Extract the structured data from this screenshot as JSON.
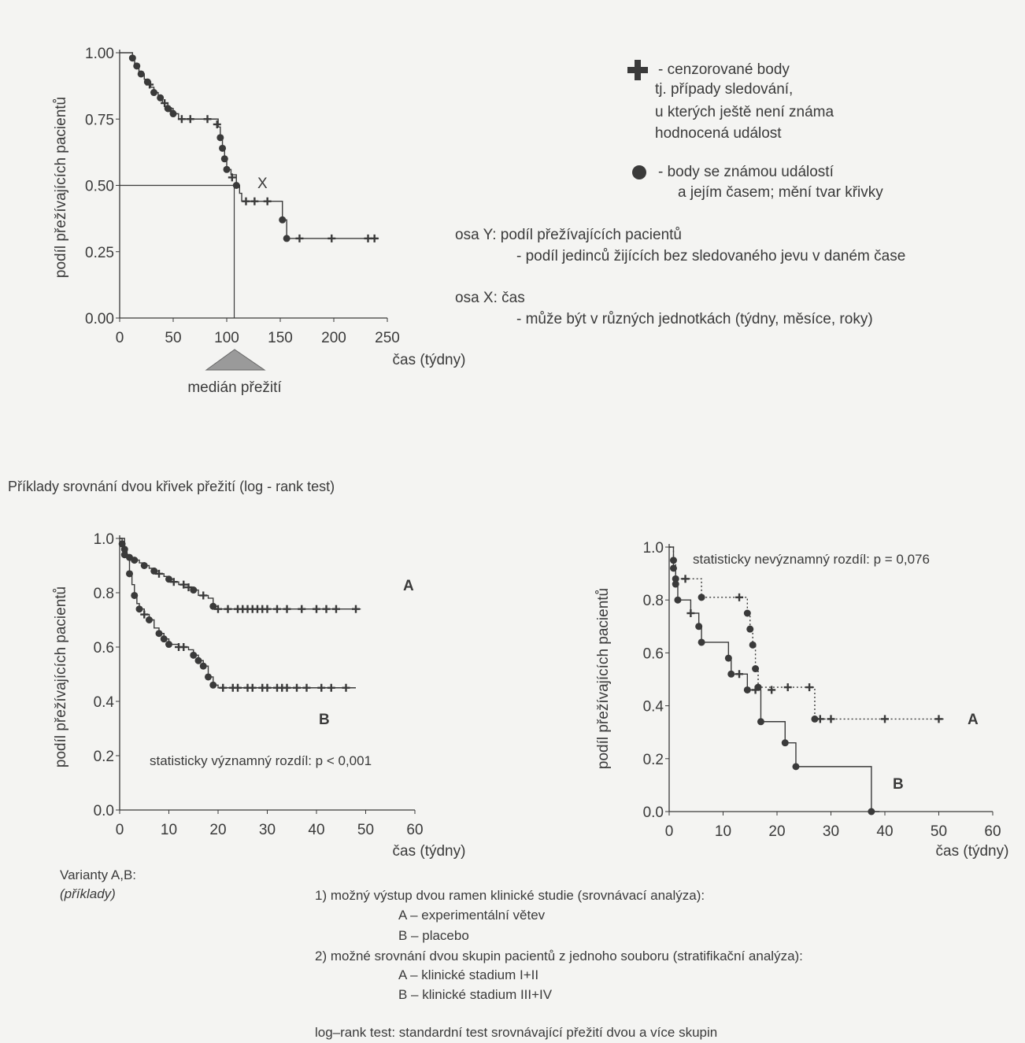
{
  "legend": {
    "censored_label": "- cenzorované body",
    "censored_desc": [
      "tj. případy sledování,",
      "u kterých ještě není známa",
      "hodnocená událost"
    ],
    "event_label": "- body se známou událostí",
    "event_desc": "a jejím časem; mění tvar křivky",
    "osa_y_title": "osa Y: podíl přežívajících pacientů",
    "osa_y_desc": "- podíl jedinců žijících bez sledovaného jevu v daném čase",
    "osa_x_title": "osa X: čas",
    "osa_x_desc": "- může být v různých jednotkách (týdny, měsíce, roky)"
  },
  "section_title": "Příklady srovnání dvou křivek přežití (log - rank test)",
  "varianty": {
    "title": "Varianty A,B:",
    "sub": "(příklady)"
  },
  "notes": {
    "n1": "1) možný výstup dvou ramen klinické studie (srovnávací analýza):",
    "n1a": "A – experimentální větev",
    "n1b": "B – placebo",
    "n2": "2) možné srovnání dvou skupin pacientů z jednoho souboru (stratifikační analýza):",
    "n2a": "A – klinické stadium I+II",
    "n2b": "B – klinické stadium III+IV",
    "logrank": "log–rank test: standardní test srovnávající přežití dvou a více skupin"
  },
  "chart_data": [
    {
      "type": "line",
      "xlabel": "čas (týdny)",
      "ylabel": "podíl přežívajících pacientů",
      "xlim": [
        0,
        250
      ],
      "ylim": [
        0,
        1
      ],
      "xticks": [
        "0",
        "50",
        "100",
        "150",
        "200",
        "250"
      ],
      "yticks": [
        "0.00",
        "0.25",
        "0.50",
        "0.75",
        "1.00"
      ],
      "annotation_x": "X",
      "median_label": "medián přežití",
      "median_x": 107,
      "series": [
        {
          "steps": [
            [
              0,
              1.0
            ],
            [
              10,
              1.0
            ],
            [
              12,
              0.98
            ],
            [
              14,
              0.96
            ],
            [
              16,
              0.95
            ],
            [
              18,
              0.93
            ],
            [
              20,
              0.92
            ],
            [
              23,
              0.9
            ],
            [
              26,
              0.89
            ],
            [
              29,
              0.87
            ],
            [
              32,
              0.85
            ],
            [
              36,
              0.83
            ],
            [
              40,
              0.81
            ],
            [
              45,
              0.79
            ],
            [
              50,
              0.77
            ],
            [
              55,
              0.75
            ],
            [
              90,
              0.75
            ],
            [
              92,
              0.72
            ],
            [
              94,
              0.68
            ],
            [
              96,
              0.64
            ],
            [
              98,
              0.6
            ],
            [
              100,
              0.56
            ],
            [
              104,
              0.54
            ],
            [
              109,
              0.5
            ],
            [
              112,
              0.47
            ],
            [
              114,
              0.44
            ],
            [
              150,
              0.44
            ],
            [
              152,
              0.37
            ],
            [
              156,
              0.3
            ],
            [
              242,
              0.3
            ]
          ],
          "events": [
            [
              12,
              0.98
            ],
            [
              16,
              0.95
            ],
            [
              20,
              0.92
            ],
            [
              26,
              0.89
            ],
            [
              32,
              0.85
            ],
            [
              38,
              0.83
            ],
            [
              45,
              0.79
            ],
            [
              50,
              0.77
            ],
            [
              94,
              0.68
            ],
            [
              96,
              0.64
            ],
            [
              98,
              0.6
            ],
            [
              100,
              0.56
            ],
            [
              109,
              0.5
            ],
            [
              152,
              0.37
            ],
            [
              156,
              0.3
            ]
          ],
          "censored": [
            [
              28,
              0.88
            ],
            [
              42,
              0.81
            ],
            [
              48,
              0.78
            ],
            [
              58,
              0.75
            ],
            [
              66,
              0.75
            ],
            [
              82,
              0.75
            ],
            [
              91,
              0.73
            ],
            [
              105,
              0.53
            ],
            [
              118,
              0.44
            ],
            [
              126,
              0.44
            ],
            [
              138,
              0.44
            ],
            [
              168,
              0.3
            ],
            [
              198,
              0.3
            ],
            [
              232,
              0.3
            ],
            [
              238,
              0.3
            ]
          ]
        }
      ]
    },
    {
      "type": "line",
      "xlabel": "čas (týdny)",
      "ylabel": "podíl přežívajících pacientů",
      "xlim": [
        0,
        60
      ],
      "ylim": [
        0,
        1
      ],
      "xticks": [
        "0",
        "10",
        "20",
        "30",
        "40",
        "50",
        "60"
      ],
      "yticks": [
        "0.0",
        "0.2",
        "0.4",
        "0.6",
        "0.8",
        "1.0"
      ],
      "annotation": "statisticky významný rozdíl: p < 0,001",
      "series": [
        {
          "name": "A",
          "steps": [
            [
              0,
              1.0
            ],
            [
              0.5,
              0.98
            ],
            [
              1,
              0.96
            ],
            [
              1.5,
              0.94
            ],
            [
              2,
              0.93
            ],
            [
              3,
              0.92
            ],
            [
              4,
              0.91
            ],
            [
              5,
              0.9
            ],
            [
              6,
              0.89
            ],
            [
              7,
              0.88
            ],
            [
              8,
              0.87
            ],
            [
              9,
              0.86
            ],
            [
              10,
              0.85
            ],
            [
              11,
              0.84
            ],
            [
              12,
              0.83
            ],
            [
              14,
              0.82
            ],
            [
              15,
              0.81
            ],
            [
              16,
              0.79
            ],
            [
              18,
              0.78
            ],
            [
              19,
              0.75
            ],
            [
              20,
              0.74
            ],
            [
              49,
              0.74
            ]
          ],
          "events": [
            [
              0.5,
              0.98
            ],
            [
              1,
              0.96
            ],
            [
              2,
              0.93
            ],
            [
              3,
              0.92
            ],
            [
              5,
              0.9
            ],
            [
              7,
              0.88
            ],
            [
              10,
              0.85
            ],
            [
              15,
              0.81
            ],
            [
              19,
              0.75
            ]
          ],
          "censored": [
            [
              8,
              0.87
            ],
            [
              11,
              0.84
            ],
            [
              13,
              0.83
            ],
            [
              14,
              0.82
            ],
            [
              17,
              0.79
            ],
            [
              20,
              0.74
            ],
            [
              22,
              0.74
            ],
            [
              24,
              0.74
            ],
            [
              25,
              0.74
            ],
            [
              26,
              0.74
            ],
            [
              27,
              0.74
            ],
            [
              28,
              0.74
            ],
            [
              29,
              0.74
            ],
            [
              30,
              0.74
            ],
            [
              32,
              0.74
            ],
            [
              34,
              0.74
            ],
            [
              37,
              0.74
            ],
            [
              40,
              0.74
            ],
            [
              42,
              0.74
            ],
            [
              44,
              0.74
            ],
            [
              48,
              0.74
            ]
          ]
        },
        {
          "name": "B",
          "steps": [
            [
              0,
              1.0
            ],
            [
              1,
              0.94
            ],
            [
              2,
              0.87
            ],
            [
              2.5,
              0.83
            ],
            [
              3,
              0.79
            ],
            [
              3.5,
              0.76
            ],
            [
              4,
              0.74
            ],
            [
              5,
              0.72
            ],
            [
              6,
              0.7
            ],
            [
              7,
              0.67
            ],
            [
              8,
              0.65
            ],
            [
              9,
              0.63
            ],
            [
              10,
              0.61
            ],
            [
              12,
              0.6
            ],
            [
              14,
              0.59
            ],
            [
              15,
              0.57
            ],
            [
              16,
              0.55
            ],
            [
              17,
              0.53
            ],
            [
              18,
              0.49
            ],
            [
              19,
              0.46
            ],
            [
              20,
              0.45
            ],
            [
              48,
              0.45
            ]
          ],
          "events": [
            [
              1,
              0.94
            ],
            [
              2,
              0.87
            ],
            [
              3,
              0.79
            ],
            [
              4,
              0.74
            ],
            [
              6,
              0.7
            ],
            [
              8,
              0.65
            ],
            [
              9,
              0.63
            ],
            [
              10,
              0.61
            ],
            [
              15,
              0.57
            ],
            [
              16,
              0.55
            ],
            [
              17,
              0.53
            ],
            [
              18,
              0.49
            ],
            [
              19,
              0.46
            ]
          ],
          "censored": [
            [
              5,
              0.72
            ],
            [
              12,
              0.6
            ],
            [
              13,
              0.6
            ],
            [
              21,
              0.45
            ],
            [
              23,
              0.45
            ],
            [
              24,
              0.45
            ],
            [
              26,
              0.45
            ],
            [
              27,
              0.45
            ],
            [
              29,
              0.45
            ],
            [
              30,
              0.45
            ],
            [
              32,
              0.45
            ],
            [
              33,
              0.45
            ],
            [
              34,
              0.45
            ],
            [
              36,
              0.45
            ],
            [
              38,
              0.45
            ],
            [
              41,
              0.45
            ],
            [
              43,
              0.45
            ],
            [
              46,
              0.45
            ]
          ]
        }
      ]
    },
    {
      "type": "line",
      "xlabel": "čas (týdny)",
      "ylabel": "podíl přežívajících pacientů",
      "xlim": [
        0,
        60
      ],
      "ylim": [
        0,
        1
      ],
      "xticks": [
        "0",
        "10",
        "20",
        "30",
        "40",
        "50",
        "60"
      ],
      "yticks": [
        "0.0",
        "0.2",
        "0.4",
        "0.6",
        "0.8",
        "1.0"
      ],
      "annotation": "statisticky nevýznamný rozdíl: p = 0,076",
      "series": [
        {
          "name": "A",
          "dashed": true,
          "steps": [
            [
              0,
              1.0
            ],
            [
              0.8,
              0.95
            ],
            [
              1.2,
              0.88
            ],
            [
              6,
              0.81
            ],
            [
              14.5,
              0.75
            ],
            [
              15,
              0.69
            ],
            [
              15.5,
              0.63
            ],
            [
              16,
              0.54
            ],
            [
              16.5,
              0.47
            ],
            [
              27,
              0.35
            ],
            [
              51,
              0.35
            ]
          ],
          "events": [
            [
              0.8,
              0.95
            ],
            [
              1.2,
              0.88
            ],
            [
              6,
              0.81
            ],
            [
              14.5,
              0.75
            ],
            [
              15,
              0.69
            ],
            [
              15.5,
              0.63
            ],
            [
              16,
              0.54
            ],
            [
              16.5,
              0.47
            ],
            [
              27,
              0.35
            ]
          ],
          "censored": [
            [
              3,
              0.88
            ],
            [
              13,
              0.81
            ],
            [
              22,
              0.47
            ],
            [
              26,
              0.47
            ],
            [
              28,
              0.35
            ],
            [
              30,
              0.35
            ],
            [
              40,
              0.35
            ],
            [
              50,
              0.35
            ]
          ]
        },
        {
          "name": "B",
          "steps": [
            [
              0,
              1.0
            ],
            [
              0.8,
              0.92
            ],
            [
              1.2,
              0.86
            ],
            [
              1.6,
              0.8
            ],
            [
              4,
              0.75
            ],
            [
              5.5,
              0.7
            ],
            [
              6,
              0.64
            ],
            [
              11,
              0.58
            ],
            [
              11.5,
              0.52
            ],
            [
              13.5,
              0.52
            ],
            [
              14.5,
              0.46
            ],
            [
              17,
              0.34
            ],
            [
              21.5,
              0.26
            ],
            [
              23.5,
              0.17
            ],
            [
              37,
              0.17
            ],
            [
              37.5,
              0
            ],
            [
              39,
              0
            ]
          ],
          "events": [
            [
              0.8,
              0.92
            ],
            [
              1.2,
              0.86
            ],
            [
              1.6,
              0.8
            ],
            [
              5.5,
              0.7
            ],
            [
              6,
              0.64
            ],
            [
              11,
              0.58
            ],
            [
              11.5,
              0.52
            ],
            [
              14.5,
              0.46
            ],
            [
              17,
              0.34
            ],
            [
              21.5,
              0.26
            ],
            [
              23.5,
              0.17
            ],
            [
              37.5,
              0
            ]
          ],
          "censored": [
            [
              4,
              0.75
            ],
            [
              13,
              0.52
            ],
            [
              16,
              0.46
            ],
            [
              19,
              0.46
            ]
          ]
        }
      ]
    }
  ]
}
